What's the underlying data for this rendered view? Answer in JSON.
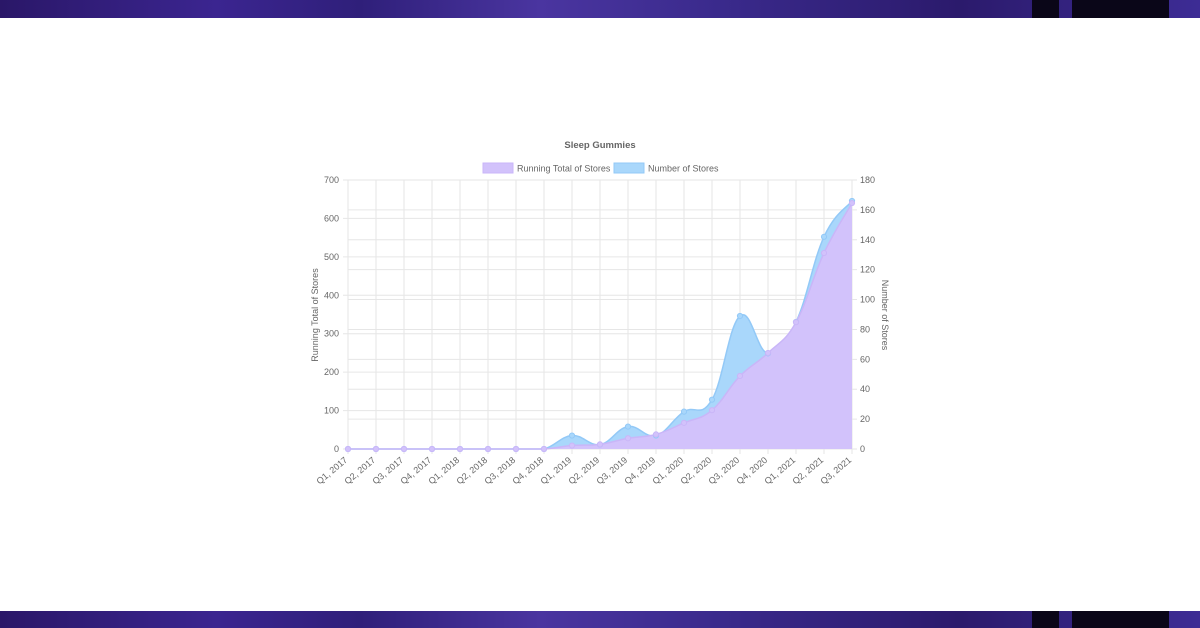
{
  "colors": {
    "running_total_fill": "#d2c2fb",
    "running_total_line": "#c9b6f8",
    "stores_fill": "#a9d7fb",
    "stores_line": "#93c9f7",
    "grid": "#e6e6e6",
    "text": "#666666",
    "banner": "#35208a"
  },
  "chart_data": {
    "type": "area",
    "title": "Sleep Gummies",
    "legend_position": "top",
    "grid": true,
    "categories": [
      "Q1, 2017",
      "Q2, 2017",
      "Q3, 2017",
      "Q4, 2017",
      "Q1, 2018",
      "Q2, 2018",
      "Q3, 2018",
      "Q4, 2018",
      "Q1, 2019",
      "Q2, 2019",
      "Q3, 2019",
      "Q4, 2019",
      "Q1, 2020",
      "Q2, 2020",
      "Q3, 2020",
      "Q4, 2020",
      "Q1, 2021",
      "Q2, 2021",
      "Q3, 2021"
    ],
    "y_left": {
      "label": "Running Total of Stores",
      "min": 0,
      "max": 700,
      "ticks": [
        0,
        100,
        200,
        300,
        400,
        500,
        600,
        700
      ]
    },
    "y_right": {
      "label": "Number of Stores",
      "min": 0,
      "max": 180,
      "ticks": [
        0,
        20,
        40,
        60,
        80,
        100,
        120,
        140,
        160,
        180
      ]
    },
    "series": [
      {
        "name": "Running Total of Stores",
        "axis": "left",
        "values": [
          0,
          0,
          0,
          0,
          0,
          0,
          0,
          0,
          9,
          12,
          28,
          38,
          68,
          101,
          190,
          250,
          330,
          510,
          640
        ]
      },
      {
        "name": "Number of Stores",
        "axis": "right",
        "values": [
          0,
          0,
          0,
          0,
          0,
          0,
          0,
          0,
          9,
          3,
          15,
          9,
          25,
          33,
          89,
          64,
          85,
          142,
          166
        ]
      }
    ]
  }
}
